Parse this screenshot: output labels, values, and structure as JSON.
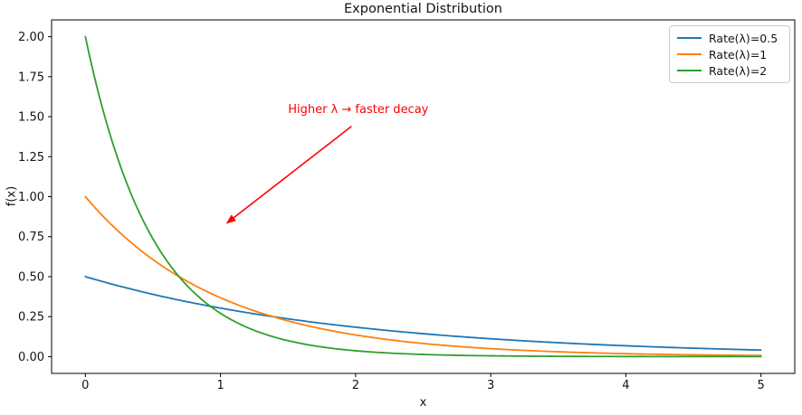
{
  "chart_data": {
    "type": "line",
    "title": "Exponential Distribution",
    "xlabel": "x",
    "ylabel": "f(x)",
    "xlim": [
      -0.25,
      5.25
    ],
    "ylim": [
      -0.105,
      2.105
    ],
    "x_ticks": [
      0,
      1,
      2,
      3,
      4,
      5
    ],
    "y_ticks": [
      "0.00",
      "0.25",
      "0.50",
      "0.75",
      "1.00",
      "1.25",
      "1.50",
      "1.75",
      "2.00"
    ],
    "grid": false,
    "legend_position": "upper right",
    "x_sample": [
      0,
      0.5,
      1,
      1.5,
      2,
      2.5,
      3,
      3.5,
      4,
      4.5,
      5
    ],
    "series": [
      {
        "name": "Rate(λ)=0.5",
        "rate": 0.5,
        "color": "#1f77b4",
        "values": [
          0.5,
          0.3894,
          0.3033,
          0.2362,
          0.1839,
          0.1433,
          0.1116,
          0.0869,
          0.0677,
          0.0527,
          0.041
        ]
      },
      {
        "name": "Rate(λ)=1",
        "rate": 1,
        "color": "#ff7f0e",
        "values": [
          1.0,
          0.6065,
          0.3679,
          0.2231,
          0.1353,
          0.0821,
          0.0498,
          0.0302,
          0.0183,
          0.0111,
          0.0067
        ]
      },
      {
        "name": "Rate(λ)=2",
        "rate": 2,
        "color": "#2ca02c",
        "values": [
          2.0,
          0.7358,
          0.2707,
          0.0996,
          0.0366,
          0.0135,
          0.005,
          0.0018,
          0.0007,
          0.0002,
          0.0001
        ]
      }
    ],
    "annotation": {
      "text": "Higher λ → faster decay",
      "color": "#ff0000",
      "text_xy": [
        1.5,
        1.5
      ],
      "arrow_tail_xy": [
        1.97,
        1.44
      ],
      "arrow_tip_xy": [
        1.04,
        0.83
      ]
    }
  }
}
